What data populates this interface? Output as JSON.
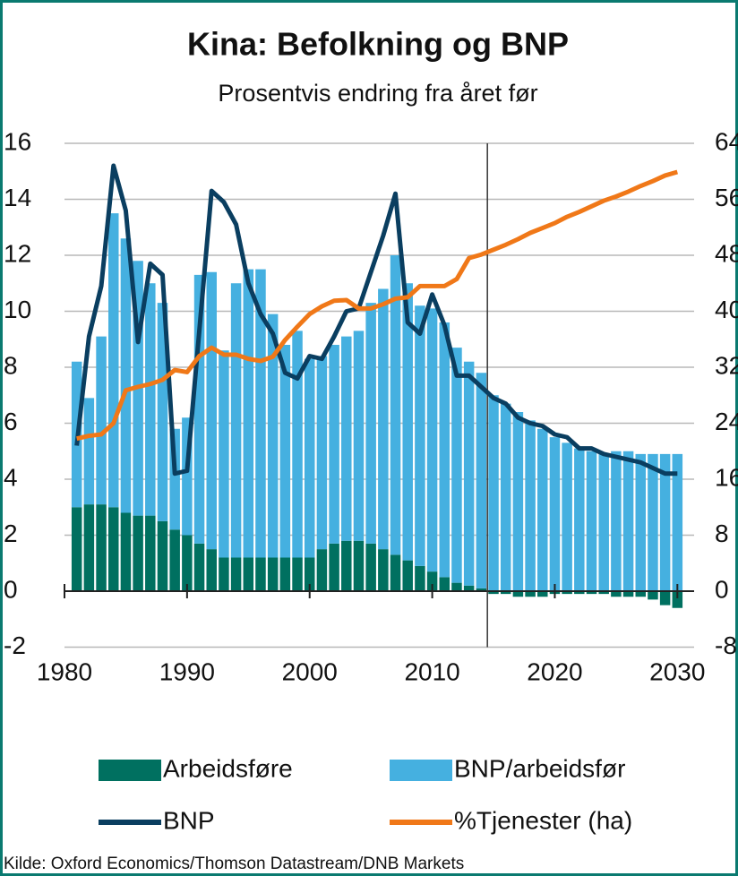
{
  "chart_data": {
    "type": "combo",
    "title": "Kina: Befolkning og BNP",
    "subtitle": "Prosentvis endring fra året før",
    "source": "Kilde: Oxford Economics/Thomson Datastream/DNB Markets",
    "x": [
      1981,
      1982,
      1983,
      1984,
      1985,
      1986,
      1987,
      1988,
      1989,
      1990,
      1991,
      1992,
      1993,
      1994,
      1995,
      1996,
      1997,
      1998,
      1999,
      2000,
      2001,
      2002,
      2003,
      2004,
      2005,
      2006,
      2007,
      2008,
      2009,
      2010,
      2011,
      2012,
      2013,
      2014,
      2015,
      2016,
      2017,
      2018,
      2019,
      2020,
      2021,
      2022,
      2023,
      2024,
      2025,
      2026,
      2027,
      2028,
      2029,
      2030
    ],
    "xlim": [
      1980,
      2031
    ],
    "xticks": [
      1980,
      1990,
      2000,
      2010,
      2020,
      2030
    ],
    "ylim": [
      -2,
      16
    ],
    "yticks": [
      -2,
      0,
      2,
      4,
      6,
      8,
      10,
      12,
      14,
      16
    ],
    "y2lim": [
      -8,
      64
    ],
    "y2ticks": [
      -8,
      0,
      8,
      16,
      24,
      32,
      40,
      48,
      56,
      64
    ],
    "grid": true,
    "vline": 2014.5,
    "series": [
      {
        "name": "Arbeidsføre",
        "type": "bar",
        "color": "#007060",
        "values": [
          3.0,
          3.1,
          3.1,
          3.0,
          2.8,
          2.7,
          2.7,
          2.5,
          2.2,
          2.0,
          1.7,
          1.5,
          1.2,
          1.2,
          1.2,
          1.2,
          1.2,
          1.2,
          1.2,
          1.2,
          1.5,
          1.7,
          1.8,
          1.8,
          1.7,
          1.5,
          1.3,
          1.1,
          0.9,
          0.7,
          0.5,
          0.3,
          0.2,
          0.1,
          -0.1,
          -0.1,
          -0.2,
          -0.2,
          -0.2,
          -0.1,
          -0.1,
          -0.1,
          -0.1,
          -0.1,
          -0.2,
          -0.2,
          -0.2,
          -0.3,
          -0.5,
          -0.6
        ]
      },
      {
        "name": "BNP/arbeidsfør",
        "type": "bar",
        "color": "#45b0e0",
        "values": [
          5.2,
          3.8,
          6.0,
          10.5,
          9.8,
          9.1,
          8.3,
          7.8,
          3.6,
          4.2,
          9.6,
          9.9,
          7.4,
          9.8,
          10.3,
          10.3,
          8.7,
          7.6,
          8.1,
          7.1,
          6.9,
          7.1,
          7.3,
          7.5,
          8.6,
          9.3,
          10.7,
          9.9,
          9.3,
          9.4,
          9.1,
          8.4,
          8.0,
          7.7,
          7.0,
          6.7,
          6.4,
          6.1,
          5.8,
          5.5,
          5.3,
          5.1,
          5.0,
          4.9,
          5.0,
          5.0,
          4.9,
          4.9,
          4.9,
          4.9
        ]
      },
      {
        "name": "BNP",
        "type": "line",
        "color": "#0a3e60",
        "values": [
          5.2,
          9.1,
          10.9,
          15.2,
          13.6,
          8.9,
          11.7,
          11.3,
          4.2,
          4.3,
          9.3,
          14.3,
          13.9,
          13.1,
          11.0,
          9.9,
          9.2,
          7.8,
          7.6,
          8.4,
          8.3,
          9.1,
          10.0,
          10.1,
          11.4,
          12.7,
          14.2,
          9.6,
          9.2,
          10.6,
          9.5,
          7.7,
          7.7,
          7.3,
          6.9,
          6.7,
          6.2,
          6.0,
          5.9,
          5.6,
          5.5,
          5.1,
          5.1,
          4.9,
          4.8,
          4.7,
          4.6,
          4.4,
          4.2,
          4.2
        ]
      },
      {
        "name": "%Tjenester (ha)",
        "type": "line",
        "axis": "y2",
        "color": "#f07818",
        "values": [
          21.8,
          22.2,
          22.4,
          24.0,
          28.7,
          29.2,
          29.6,
          30.2,
          31.6,
          31.3,
          33.6,
          34.8,
          33.8,
          33.8,
          33.2,
          32.9,
          33.5,
          35.9,
          37.8,
          39.6,
          40.7,
          41.5,
          41.6,
          40.4,
          40.4,
          41.0,
          41.8,
          42.0,
          43.6,
          43.6,
          43.6,
          44.6,
          47.6,
          48.1,
          48.8,
          49.5,
          50.3,
          51.2,
          51.9,
          52.6,
          53.5,
          54.2,
          55.0,
          55.8,
          56.4,
          57.1,
          57.9,
          58.6,
          59.4,
          59.9
        ]
      }
    ]
  }
}
